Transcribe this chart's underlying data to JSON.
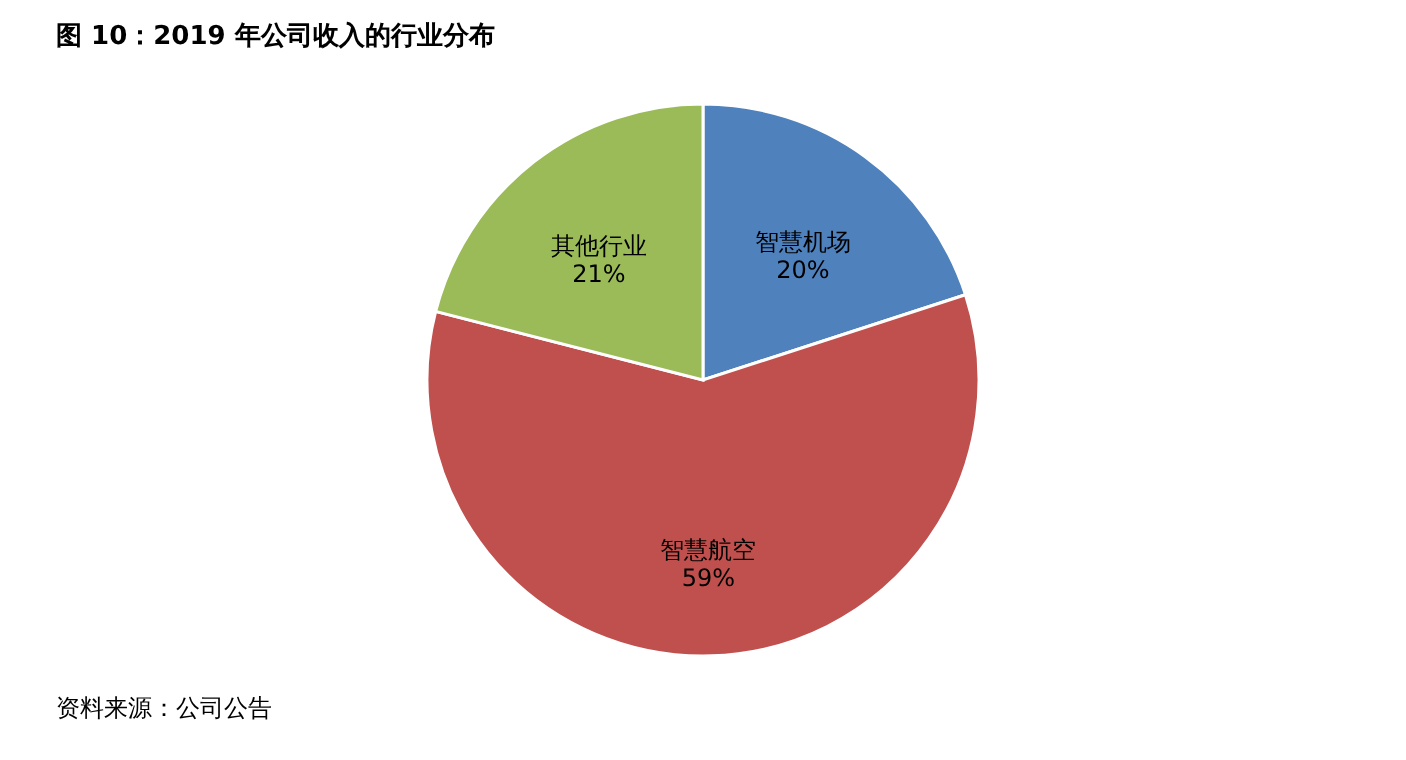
{
  "chart_data": {
    "type": "pie",
    "title": "图 10：2019 年公司收入的行业分布",
    "categories": [
      "智慧机场",
      "智慧航空",
      "其他行业"
    ],
    "values": [
      20,
      59,
      21
    ],
    "colors": [
      "#4f81bd",
      "#c0504d",
      "#9bbb59"
    ],
    "value_labels": [
      "20%",
      "59%",
      "21%"
    ],
    "annotations": [
      "资料来源：公司公告"
    ]
  }
}
